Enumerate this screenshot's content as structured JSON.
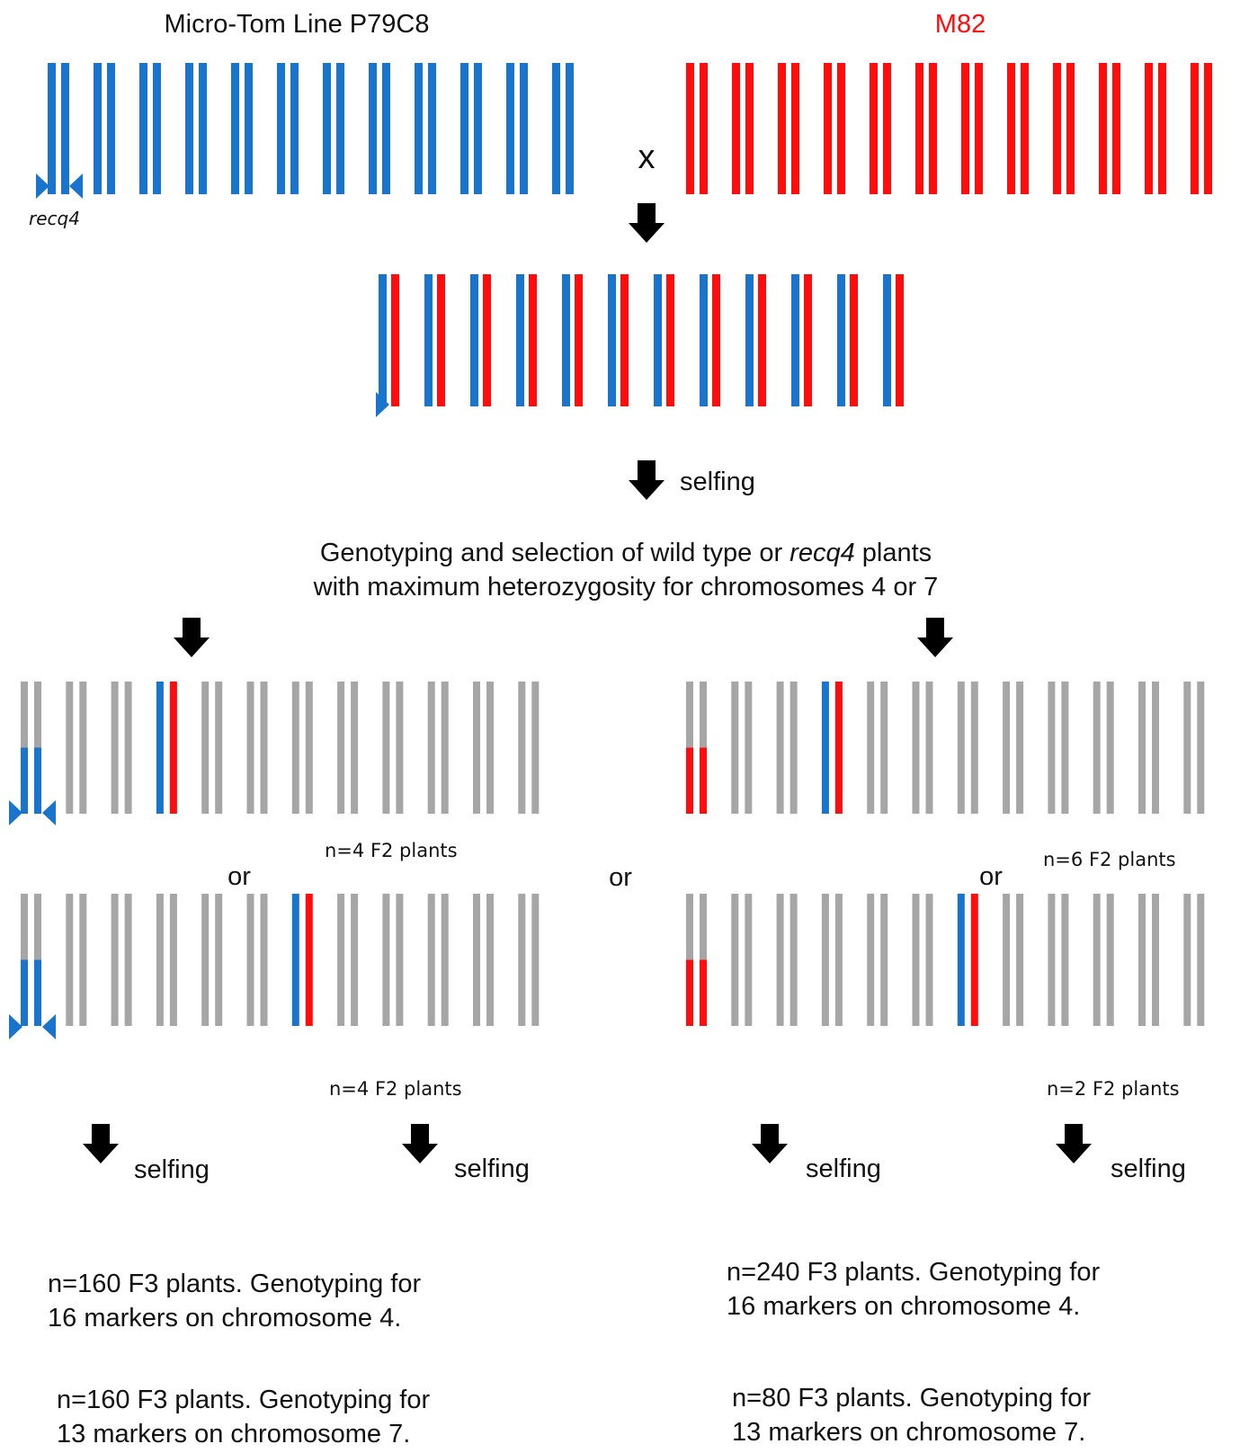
{
  "colors": {
    "microtom": "#1874cd",
    "m82": "#ff0d0d",
    "neutral": "#a6a6a6",
    "arrow": "#000000",
    "text": "#111111"
  },
  "parents": {
    "left_title": "Micro-Tom Line P79C8",
    "right_title": "M82",
    "cross_symbol": "x",
    "mutation_label": "recq4"
  },
  "steps": {
    "selfing_1": "selfing",
    "selection_line1_a": "Genotyping and selection of wild type or ",
    "selection_line1_italic": "recq4",
    "selection_line1_b": " plants",
    "selection_line2": "with maximum heterozygosity for chromosomes 4 or 7"
  },
  "f2_groups": {
    "left_top_count": "n=4 F2 plants",
    "left_bottom_count": "n=4 F2 plants",
    "right_top_count": "n=6 F2 plants",
    "right_bottom_count": "n=2 F2 plants",
    "or_left": "or",
    "or_middle": "or",
    "or_right": "or"
  },
  "selfing_labels": [
    "selfing",
    "selfing",
    "selfing",
    "selfing"
  ],
  "f3_results": {
    "left_top_line1": "n=160 F3 plants.  Genotyping for",
    "left_top_line2": "16 markers on chromosome 4.",
    "left_bottom_line1": "n=160 F3 plants.  Genotyping for",
    "left_bottom_line2": "13 markers on chromosome 7.",
    "right_top_line1": "n=240 F3 plants.  Genotyping for",
    "right_top_line2": "16 markers on chromosome 4.",
    "right_bottom_line1": "n=80 F3 plants.  Genotyping for",
    "right_bottom_line2": "13 markers on chromosome 7."
  }
}
